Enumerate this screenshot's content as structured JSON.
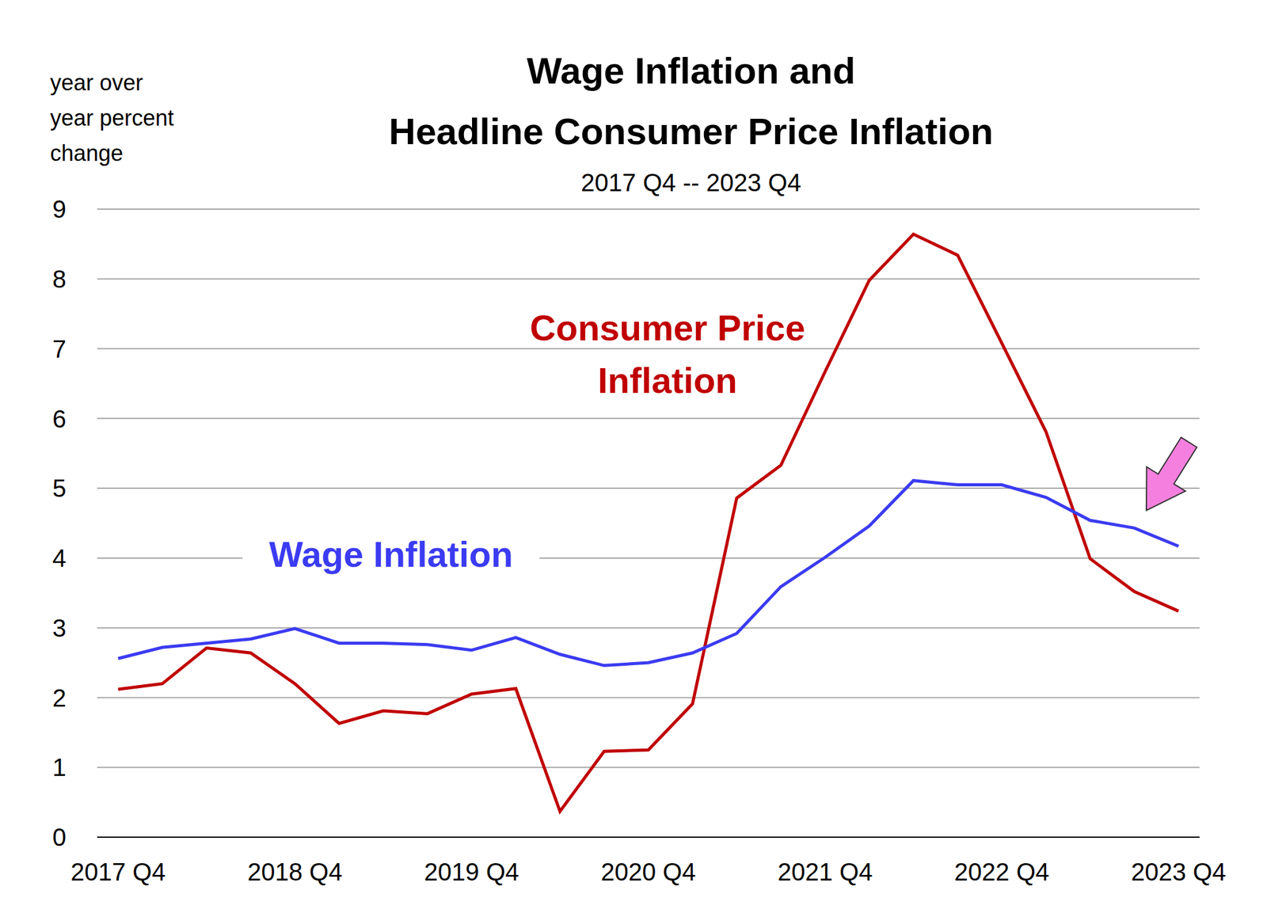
{
  "chart_data": {
    "type": "line",
    "title": "Wage Inflation and\nHeadline Consumer Price Inflation",
    "subtitle": "2017 Q4 -- 2023 Q4",
    "y_label": "year over\nyear percent\nchange",
    "categories": [
      "2017 Q4",
      null,
      null,
      null,
      "2018 Q4",
      null,
      null,
      null,
      "2019 Q4",
      null,
      null,
      null,
      "2020 Q4",
      null,
      null,
      null,
      "2021 Q4",
      null,
      null,
      null,
      "2022 Q4",
      null,
      null,
      null,
      "2023 Q4"
    ],
    "series": [
      {
        "name": "Consumer Price Inflation",
        "color": "#c00000",
        "values": [
          2.12,
          2.2,
          2.71,
          2.64,
          2.2,
          1.63,
          1.81,
          1.77,
          2.05,
          2.13,
          0.37,
          1.23,
          1.25,
          1.91,
          4.86,
          5.33,
          6.67,
          7.98,
          8.64,
          8.34,
          7.08,
          5.81,
          3.99,
          3.52,
          3.24
        ]
      },
      {
        "name": "Wage Inflation",
        "color": "#3b3bf2",
        "values": [
          2.56,
          2.72,
          2.78,
          2.84,
          2.99,
          2.78,
          2.78,
          2.76,
          2.68,
          2.86,
          2.62,
          2.46,
          2.5,
          2.64,
          2.92,
          3.59,
          4.01,
          4.46,
          5.11,
          5.05,
          5.05,
          4.87,
          4.54,
          4.43,
          4.17
        ]
      }
    ],
    "ylim": [
      0,
      9
    ],
    "yticks": [
      0,
      1,
      2,
      3,
      4,
      5,
      6,
      7,
      8,
      9
    ],
    "grid": true
  }
}
